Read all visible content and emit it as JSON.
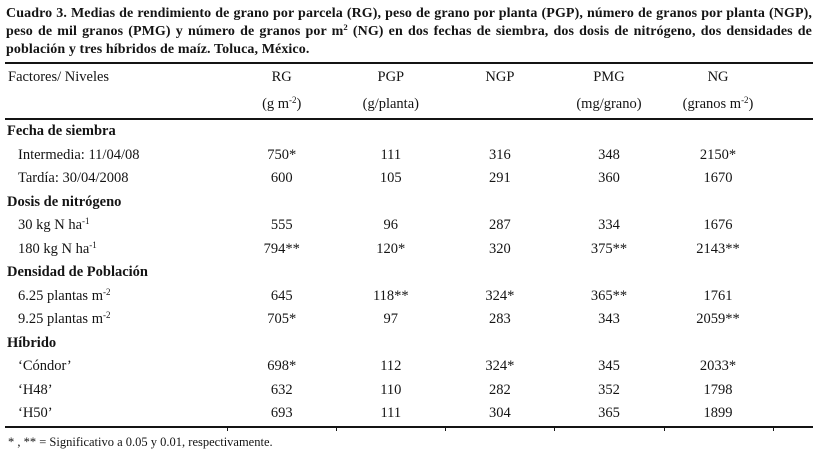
{
  "caption": "Cuadro 3. Medias de rendimiento de grano por parcela (RG), peso de grano por planta (PGP), número de granos por planta (NGP), peso de mil granos (PMG) y número de granos por m^{2} (NG) en dos fechas de siembra, dos dosis de nitrógeno, dos densidades de población y tres híbridos de maíz. Toluca, México.",
  "table": {
    "header": {
      "factor_label": "Factores/ Niveles",
      "columns": [
        {
          "name": "RG",
          "unit": "(g m^{-2})"
        },
        {
          "name": "PGP",
          "unit": "(g/planta)"
        },
        {
          "name": "NGP",
          "unit": ""
        },
        {
          "name": "PMG",
          "unit": "(mg/grano)"
        },
        {
          "name": "NG",
          "unit": "(granos m^{-2})"
        }
      ]
    },
    "sections": [
      {
        "title": "Fecha de siembra",
        "rows": [
          {
            "label": "Intermedia: 11/04/08",
            "values": [
              "750*",
              "111",
              "316",
              "348",
              "2150*"
            ]
          },
          {
            "label": "Tardía: 30/04/2008",
            "values": [
              "600",
              "105",
              "291",
              "360",
              "1670"
            ]
          }
        ]
      },
      {
        "title": "Dosis de nitrógeno",
        "rows": [
          {
            "label": "30 kg N ha^{-1}",
            "values": [
              "555",
              "96",
              "287",
              "334",
              "1676"
            ]
          },
          {
            "label": "180 kg N ha^{-1}",
            "values": [
              "794**",
              "120*",
              "320",
              "375**",
              "2143**"
            ]
          }
        ]
      },
      {
        "title": "Densidad de Población",
        "rows": [
          {
            "label": "6.25 plantas m^{-2}",
            "values": [
              "645",
              "118**",
              "324*",
              "365**",
              "1761"
            ]
          },
          {
            "label": "9.25 plantas m^{-2}",
            "values": [
              "705*",
              "97",
              "283",
              "343",
              "2059**"
            ]
          }
        ]
      },
      {
        "title": "Híbrido",
        "rows": [
          {
            "label": "‘Cóndor’",
            "values": [
              "698*",
              "112",
              "324*",
              "345",
              "2033*"
            ]
          },
          {
            "label": "‘H48’",
            "values": [
              "632",
              "110",
              "282",
              "352",
              "1798"
            ]
          },
          {
            "label": "‘H50’",
            "values": [
              "693",
              "111",
              "304",
              "365",
              "1899"
            ]
          }
        ]
      }
    ],
    "footnote": "* , ** = Significativo a 0.05 y 0.01, respectivamente."
  }
}
